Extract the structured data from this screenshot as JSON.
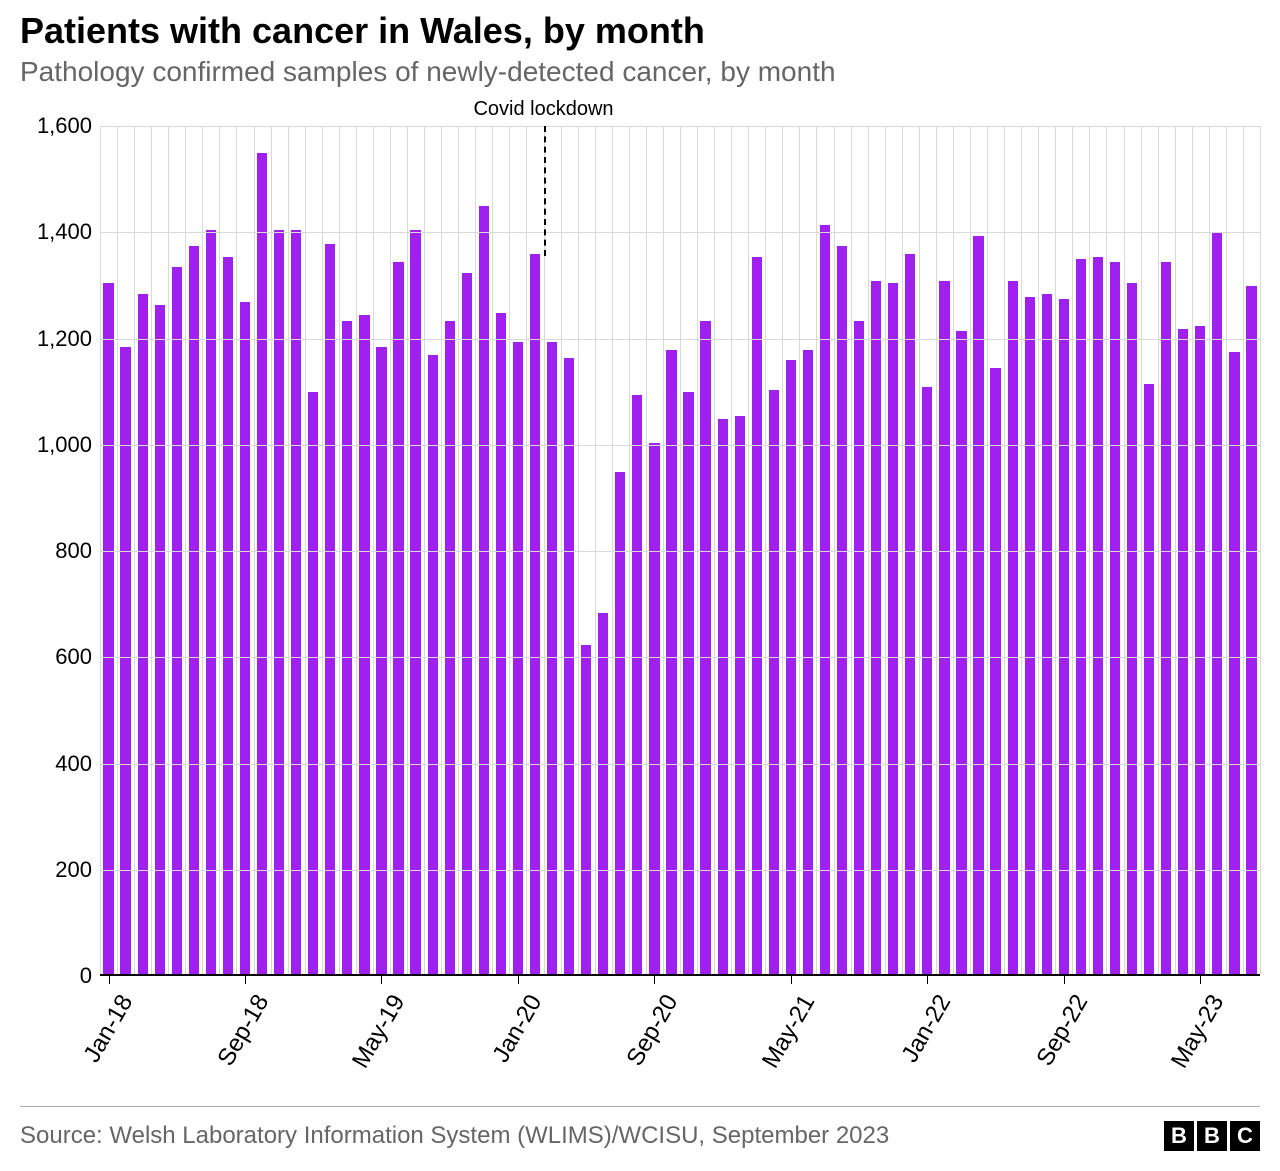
{
  "title": "Patients with cancer in Wales, by month",
  "subtitle": "Pathology confirmed samples of newly-detected cancer, by month",
  "source": "Source: Welsh Laboratory Information System (WLIMS)/WCISU, September 2023",
  "logo_letters": [
    "B",
    "B",
    "C"
  ],
  "chart": {
    "type": "bar",
    "bar_color": "#a020f0",
    "background_color": "#ffffff",
    "grid_color": "#d9d9d9",
    "axis_color": "#000000",
    "ylim": [
      0,
      1600
    ],
    "yticks": [
      0,
      200,
      400,
      600,
      800,
      1000,
      1200,
      1400,
      1600
    ],
    "ytick_labels": [
      "0",
      "200",
      "400",
      "600",
      "800",
      "1,000",
      "1,200",
      "1,400",
      "1,600"
    ],
    "title_fontsize": 36,
    "subtitle_fontsize": 28,
    "axis_label_fontsize": 22,
    "bar_width_ratio": 0.6,
    "annotation": {
      "label": "Covid lockdown",
      "index": 26,
      "fontsize": 20
    },
    "xticks": [
      {
        "index": 0,
        "label": "Jan-18"
      },
      {
        "index": 8,
        "label": "Sep-18"
      },
      {
        "index": 16,
        "label": "May-19"
      },
      {
        "index": 24,
        "label": "Jan-20"
      },
      {
        "index": 32,
        "label": "Sep-20"
      },
      {
        "index": 40,
        "label": "May-21"
      },
      {
        "index": 48,
        "label": "Jan-22"
      },
      {
        "index": 56,
        "label": "Sep-22"
      },
      {
        "index": 64,
        "label": "May-23"
      }
    ],
    "values": [
      1300,
      1180,
      1280,
      1260,
      1330,
      1370,
      1400,
      1350,
      1265,
      1545,
      1400,
      1400,
      1095,
      1375,
      1230,
      1240,
      1180,
      1340,
      1400,
      1165,
      1230,
      1320,
      1445,
      1245,
      1190,
      1355,
      1190,
      1160,
      620,
      680,
      945,
      1090,
      1000,
      1175,
      1095,
      1230,
      1045,
      1050,
      1350,
      1100,
      1155,
      1175,
      1410,
      1370,
      1230,
      1305,
      1300,
      1355,
      1105,
      1305,
      1210,
      1390,
      1140,
      1305,
      1275,
      1280,
      1270,
      1345,
      1350,
      1340,
      1300,
      1110,
      1340,
      1215,
      1220,
      1395,
      1170,
      1295
    ]
  }
}
